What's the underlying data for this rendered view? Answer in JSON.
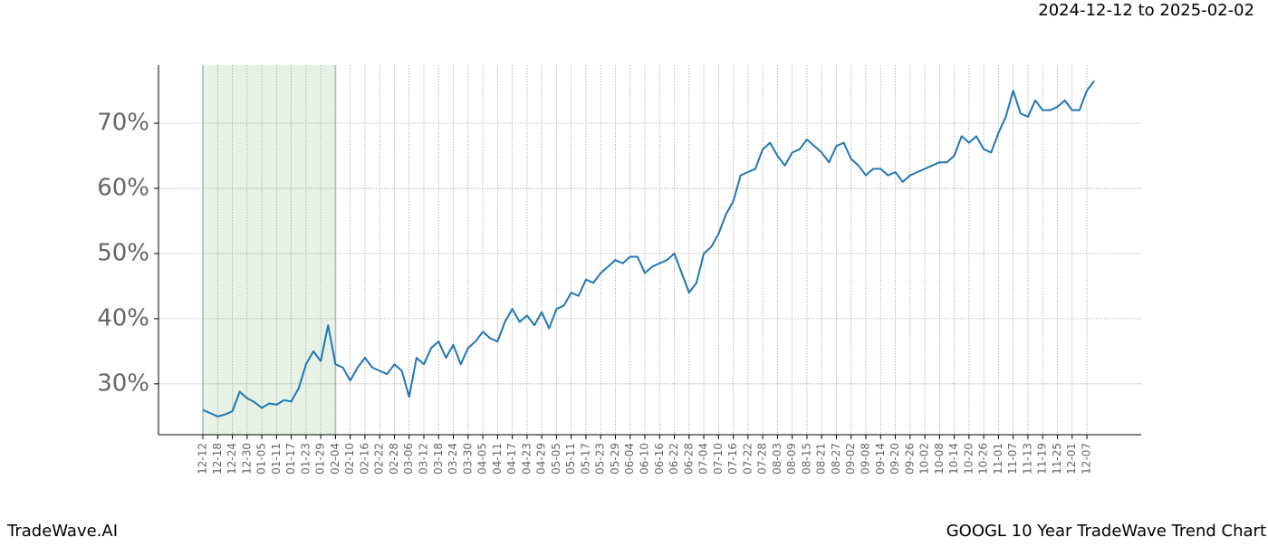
{
  "header": {
    "date_range": "2024-12-12 to 2025-02-02"
  },
  "footer": {
    "left": "TradeWave.AI",
    "right": "GOOGL 10 Year TradeWave Trend Chart"
  },
  "chart_data": {
    "type": "line",
    "categories": [
      "12-12",
      null,
      "12-18",
      null,
      "12-24",
      null,
      "12-30",
      null,
      "01-05",
      null,
      "01-11",
      null,
      "01-17",
      null,
      "01-23",
      null,
      "01-29",
      null,
      "02-04",
      null,
      "02-10",
      null,
      "02-16",
      null,
      "02-22",
      null,
      "02-28",
      null,
      "03-06",
      null,
      "03-12",
      null,
      "03-18",
      null,
      "03-24",
      null,
      "03-30",
      null,
      "04-05",
      null,
      "04-11",
      null,
      "04-17",
      null,
      "04-23",
      null,
      "04-29",
      null,
      "05-05",
      null,
      "05-11",
      null,
      "05-17",
      null,
      "05-23",
      null,
      "05-29",
      null,
      "06-04",
      null,
      "06-10",
      null,
      "06-16",
      null,
      "06-22",
      null,
      "06-28",
      null,
      "07-04",
      null,
      "07-10",
      null,
      "07-16",
      null,
      "07-22",
      null,
      "07-28",
      null,
      "08-03",
      null,
      "08-09",
      null,
      "08-15",
      null,
      "08-21",
      null,
      "08-27",
      null,
      "09-02",
      null,
      "09-08",
      null,
      "09-14",
      null,
      "09-20",
      null,
      "09-26",
      null,
      "10-02",
      null,
      "10-08",
      null,
      "10-14",
      null,
      "10-20",
      null,
      "10-26",
      null,
      "11-01",
      null,
      "11-07",
      null,
      "11-13",
      null,
      "11-19",
      null,
      "11-25",
      null,
      "12-01",
      null,
      "12-07",
      null
    ],
    "series": [
      {
        "color": "#1f77b4",
        "values": [
          26,
          25.5,
          25,
          25.3,
          25.8,
          28.8,
          27.8,
          27.2,
          26.3,
          27,
          26.8,
          27.5,
          27.3,
          29.3,
          33,
          35,
          33.5,
          39,
          33,
          32.5,
          30.5,
          32.5,
          34,
          32.5,
          32,
          31.5,
          33,
          32,
          28,
          34,
          33,
          35.5,
          36.5,
          34,
          36,
          33,
          35.5,
          36.5,
          38,
          37,
          36.5,
          39.5,
          41.5,
          39.5,
          40.5,
          39,
          41,
          38.5,
          41.5,
          42,
          44,
          43.5,
          46,
          45.5,
          47,
          48,
          49,
          48.5,
          49.5,
          49.5,
          47,
          48,
          48.5,
          49,
          50,
          47,
          44,
          45.5,
          50,
          51,
          53,
          56,
          58,
          62,
          62.5,
          63,
          66,
          67,
          65,
          63.5,
          65.5,
          66,
          67.5,
          66.5,
          65.5,
          64,
          66.5,
          67,
          64.5,
          63.5,
          62,
          63,
          63,
          62,
          62.5,
          61,
          62,
          62.5,
          63,
          63.5,
          64,
          64,
          65,
          68,
          67,
          68,
          66,
          65.5,
          68.5,
          71,
          75,
          71.5,
          71,
          73.5,
          72,
          72,
          72.5,
          73.5,
          72,
          72,
          75,
          76.5
        ]
      }
    ],
    "shaded_range": {
      "start": "12-12",
      "end": "02-04",
      "color": "#e6f2e6"
    },
    "ylim": [
      22.2,
      78.9
    ],
    "yticks": [
      {
        "value": 30,
        "label": "30%"
      },
      {
        "value": 40,
        "label": "40%"
      },
      {
        "value": 50,
        "label": "50%"
      },
      {
        "value": 60,
        "label": "60%"
      },
      {
        "value": 70,
        "label": "70%"
      }
    ],
    "grid": true
  }
}
